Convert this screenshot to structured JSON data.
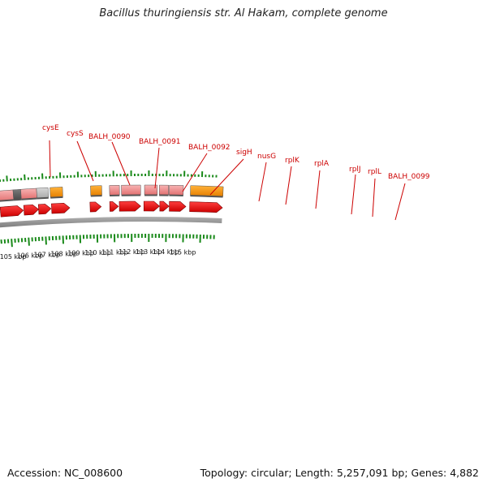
{
  "title": "Bacillus thuringiensis str. Al Hakam, complete genome",
  "footer": {
    "accession": "Accession: NC_008600",
    "topology": "Topology: circular; Length: 5,257,091 bp; Genes: 4,882"
  },
  "colors": {
    "gene_label": "#cc0000",
    "tick": "#1a8a1a",
    "backbone": "#8c8c8c",
    "cds_arrow": "#e80000",
    "feature_pink": "#f08c8c",
    "feature_blue": "#4a84b8",
    "feature_orange": "#ff9a00",
    "feature_dark": "#606060",
    "feature_gray": "#c4c4c4"
  },
  "gene_labels": [
    "cysE",
    "cysS",
    "BALH_0090",
    "BALH_0091",
    "BALH_0092",
    "sigH",
    "nusG",
    "rplK",
    "rplA",
    "rplJ",
    "rplL",
    "BALH_0099"
  ],
  "kbp_labels": [
    "105 kbp",
    "106 kbp",
    "107 kbp",
    "108 kbp",
    "109 kbp",
    "110 kbp",
    "111 kbp",
    "112 kbp",
    "113 kbp",
    "114 kbp",
    "115 kbp"
  ]
}
